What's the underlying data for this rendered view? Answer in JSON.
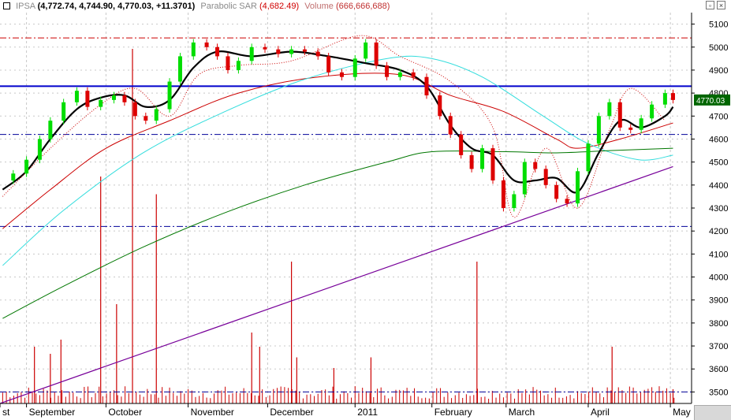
{
  "header": {
    "symbol": "IPSA",
    "ohlc": "(4,772.74, 4,744.90, 4,770.03, +11.3701)",
    "sar_label": "Parabolic SAR",
    "sar_value": "(4,682.49)",
    "volume_label": "Volume",
    "volume_value": "(666,666,688)"
  },
  "window_buttons": {
    "restore": "▫",
    "close": "×"
  },
  "colors": {
    "up_candle": "#00dd00",
    "down_candle": "#dd0000",
    "price_line": "#0000cc",
    "dashed_red": "#cc0000",
    "dashed_navy": "#000099",
    "sar_dots": "#cc0000",
    "ma_black": "#000000",
    "ma_red": "#cc0000",
    "ma_cyan": "#33dddd",
    "ma_green": "#007700",
    "trend_purple": "#770099",
    "volume": "#cc0000",
    "grid": "#c8c8c8"
  },
  "chart_data": {
    "type": "candlestick",
    "y_axis": {
      "range": [
        3450,
        5150
      ],
      "ticks": [
        3500,
        3600,
        3700,
        3800,
        3900,
        4000,
        4100,
        4200,
        4300,
        4400,
        4500,
        4600,
        4700,
        4800,
        4900,
        5000,
        5100
      ],
      "tick_labels": [
        "3500",
        "3600",
        "3700",
        "3800",
        "3900",
        "4000",
        "4100",
        "4200",
        "4300",
        "4400",
        "4500",
        "4600",
        "4700",
        "4800",
        "4900",
        "5000",
        "5100"
      ]
    },
    "x_axis": {
      "range": [
        "2010-08-22",
        "2011-05-10"
      ],
      "labels": [
        {
          "date": "2010-08-22",
          "text": "st"
        },
        {
          "date": "2010-09-01",
          "text": "September"
        },
        {
          "date": "2010-10-01",
          "text": "October"
        },
        {
          "date": "2010-11-01",
          "text": "November"
        },
        {
          "date": "2010-12-01",
          "text": "December"
        },
        {
          "date": "2011-01-03",
          "text": "2011"
        },
        {
          "date": "2011-02-01",
          "text": "February"
        },
        {
          "date": "2011-03-01",
          "text": "March"
        },
        {
          "date": "2011-04-01",
          "text": "April"
        },
        {
          "date": "2011-05-02",
          "text": "May"
        }
      ]
    },
    "last_price_label": "4770.03",
    "last_price": 4770.03,
    "horizontal_lines": [
      {
        "style": "solid",
        "color": "price_line",
        "value": 4830
      },
      {
        "style": "dashdot",
        "color": "dashed_red",
        "value": 5040
      },
      {
        "style": "dashdot",
        "color": "dashed_navy",
        "value": 4620
      },
      {
        "style": "dashdot",
        "color": "dashed_navy",
        "value": 4220
      },
      {
        "style": "dashdot",
        "color": "dashed_navy",
        "value": 3500
      }
    ],
    "trendline": {
      "start": [
        "2010-08-22",
        3450
      ],
      "end": [
        "2011-05-03",
        4480
      ]
    },
    "close_series": [
      {
        "date": "2010-08-23",
        "close": 4420
      },
      {
        "date": "2010-08-27",
        "close": 4450
      },
      {
        "date": "2010-09-01",
        "close": 4510
      },
      {
        "date": "2010-09-06",
        "close": 4600
      },
      {
        "date": "2010-09-10",
        "close": 4680
      },
      {
        "date": "2010-09-15",
        "close": 4760
      },
      {
        "date": "2010-09-20",
        "close": 4810
      },
      {
        "date": "2010-09-24",
        "close": 4740
      },
      {
        "date": "2010-09-29",
        "close": 4770
      },
      {
        "date": "2010-10-04",
        "close": 4790
      },
      {
        "date": "2010-10-08",
        "close": 4760
      },
      {
        "date": "2010-10-12",
        "close": 4700
      },
      {
        "date": "2010-10-16",
        "close": 4680
      },
      {
        "date": "2010-10-20",
        "close": 4730
      },
      {
        "date": "2010-10-25",
        "close": 4850
      },
      {
        "date": "2010-10-29",
        "close": 4960
      },
      {
        "date": "2010-11-03",
        "close": 5020
      },
      {
        "date": "2010-11-08",
        "close": 5000
      },
      {
        "date": "2010-11-12",
        "close": 4960
      },
      {
        "date": "2010-11-16",
        "close": 4900
      },
      {
        "date": "2010-11-20",
        "close": 4940
      },
      {
        "date": "2010-11-25",
        "close": 5000
      },
      {
        "date": "2010-11-30",
        "close": 4990
      },
      {
        "date": "2010-12-05",
        "close": 4970
      },
      {
        "date": "2010-12-10",
        "close": 4990
      },
      {
        "date": "2010-12-15",
        "close": 4980
      },
      {
        "date": "2010-12-20",
        "close": 4960
      },
      {
        "date": "2010-12-24",
        "close": 4890
      },
      {
        "date": "2010-12-29",
        "close": 4870
      },
      {
        "date": "2011-01-03",
        "close": 4950
      },
      {
        "date": "2011-01-07",
        "close": 5020
      },
      {
        "date": "2011-01-11",
        "close": 4920
      },
      {
        "date": "2011-01-15",
        "close": 4870
      },
      {
        "date": "2011-01-20",
        "close": 4890
      },
      {
        "date": "2011-01-25",
        "close": 4870
      },
      {
        "date": "2011-01-30",
        "close": 4790
      },
      {
        "date": "2011-02-04",
        "close": 4700
      },
      {
        "date": "2011-02-08",
        "close": 4620
      },
      {
        "date": "2011-02-12",
        "close": 4530
      },
      {
        "date": "2011-02-16",
        "close": 4470
      },
      {
        "date": "2011-02-20",
        "close": 4560
      },
      {
        "date": "2011-02-24",
        "close": 4420
      },
      {
        "date": "2011-02-28",
        "close": 4300
      },
      {
        "date": "2011-03-04",
        "close": 4360
      },
      {
        "date": "2011-03-08",
        "close": 4500
      },
      {
        "date": "2011-03-12",
        "close": 4470
      },
      {
        "date": "2011-03-16",
        "close": 4400
      },
      {
        "date": "2011-03-20",
        "close": 4340
      },
      {
        "date": "2011-03-24",
        "close": 4320
      },
      {
        "date": "2011-03-28",
        "close": 4460
      },
      {
        "date": "2011-04-01",
        "close": 4580
      },
      {
        "date": "2011-04-05",
        "close": 4700
      },
      {
        "date": "2011-04-09",
        "close": 4760
      },
      {
        "date": "2011-04-13",
        "close": 4650
      },
      {
        "date": "2011-04-17",
        "close": 4640
      },
      {
        "date": "2011-04-21",
        "close": 4690
      },
      {
        "date": "2011-04-25",
        "close": 4750
      },
      {
        "date": "2011-04-30",
        "close": 4800
      },
      {
        "date": "2011-05-03",
        "close": 4770
      }
    ],
    "moving_averages": [
      {
        "color": "ma_black",
        "points": [
          [
            "2010-08-23",
            4380
          ],
          [
            "2010-09-01",
            4460
          ],
          [
            "2010-09-10",
            4600
          ],
          [
            "2010-09-20",
            4730
          ],
          [
            "2010-09-29",
            4780
          ],
          [
            "2010-10-08",
            4790
          ],
          [
            "2010-10-16",
            4740
          ],
          [
            "2010-10-25",
            4770
          ],
          [
            "2010-11-03",
            4910
          ],
          [
            "2010-11-12",
            4980
          ],
          [
            "2010-11-25",
            4960
          ],
          [
            "2010-12-10",
            4980
          ],
          [
            "2010-12-24",
            4960
          ],
          [
            "2011-01-07",
            4930
          ],
          [
            "2011-01-20",
            4900
          ],
          [
            "2011-01-30",
            4830
          ],
          [
            "2011-02-08",
            4660
          ],
          [
            "2011-02-16",
            4560
          ],
          [
            "2011-02-24",
            4530
          ],
          [
            "2011-03-04",
            4420
          ],
          [
            "2011-03-12",
            4420
          ],
          [
            "2011-03-20",
            4430
          ],
          [
            "2011-03-28",
            4370
          ],
          [
            "2011-04-05",
            4540
          ],
          [
            "2011-04-13",
            4680
          ],
          [
            "2011-04-21",
            4650
          ],
          [
            "2011-04-30",
            4700
          ],
          [
            "2011-05-03",
            4740
          ]
        ]
      },
      {
        "color": "ma_red",
        "points": [
          [
            "2010-08-23",
            4210
          ],
          [
            "2010-09-10",
            4380
          ],
          [
            "2010-10-01",
            4560
          ],
          [
            "2010-10-25",
            4680
          ],
          [
            "2010-11-20",
            4800
          ],
          [
            "2010-12-20",
            4870
          ],
          [
            "2011-01-20",
            4880
          ],
          [
            "2011-02-08",
            4790
          ],
          [
            "2011-02-28",
            4720
          ],
          [
            "2011-03-20",
            4600
          ],
          [
            "2011-03-28",
            4560
          ],
          [
            "2011-04-13",
            4600
          ],
          [
            "2011-05-03",
            4670
          ]
        ]
      },
      {
        "color": "ma_cyan",
        "points": [
          [
            "2010-08-23",
            4050
          ],
          [
            "2010-09-15",
            4290
          ],
          [
            "2010-10-15",
            4540
          ],
          [
            "2010-11-15",
            4720
          ],
          [
            "2010-12-15",
            4860
          ],
          [
            "2011-01-15",
            4950
          ],
          [
            "2011-02-01",
            4950
          ],
          [
            "2011-02-20",
            4870
          ],
          [
            "2011-03-15",
            4700
          ],
          [
            "2011-04-01",
            4580
          ],
          [
            "2011-04-20",
            4510
          ],
          [
            "2011-05-03",
            4530
          ]
        ]
      },
      {
        "color": "ma_green",
        "points": [
          [
            "2010-08-23",
            3820
          ],
          [
            "2010-09-15",
            3960
          ],
          [
            "2010-10-15",
            4130
          ],
          [
            "2010-11-15",
            4280
          ],
          [
            "2010-12-15",
            4400
          ],
          [
            "2011-01-15",
            4500
          ],
          [
            "2011-02-01",
            4545
          ],
          [
            "2011-03-01",
            4545
          ],
          [
            "2011-03-20",
            4540
          ],
          [
            "2011-04-10",
            4550
          ],
          [
            "2011-05-03",
            4560
          ]
        ]
      }
    ],
    "volume": {
      "series": "Volume",
      "spikes": [
        {
          "date": "2010-09-04",
          "value": 0.16
        },
        {
          "date": "2010-09-10",
          "value": 0.14
        },
        {
          "date": "2010-09-14",
          "value": 0.18
        },
        {
          "date": "2010-09-29",
          "value": 0.64
        },
        {
          "date": "2010-10-05",
          "value": 0.28
        },
        {
          "date": "2010-10-11",
          "value": 1.0
        },
        {
          "date": "2010-10-20",
          "value": 0.59
        },
        {
          "date": "2010-11-25",
          "value": 0.2
        },
        {
          "date": "2010-11-28",
          "value": 0.16
        },
        {
          "date": "2010-12-10",
          "value": 0.4
        },
        {
          "date": "2010-12-12",
          "value": 0.13
        },
        {
          "date": "2010-12-26",
          "value": 0.1
        },
        {
          "date": "2011-01-09",
          "value": 0.13
        },
        {
          "date": "2011-02-18",
          "value": 0.4
        },
        {
          "date": "2011-04-10",
          "value": 0.16
        },
        {
          "date": "2011-05-03",
          "value": 0.04
        }
      ]
    },
    "sar": {
      "series": "Parabolic SAR",
      "value_label": "4,682.49",
      "points": [
        [
          "2010-08-23",
          4350
        ],
        [
          "2010-09-10",
          4560
        ],
        [
          "2010-09-29",
          4750
        ],
        [
          "2010-10-12",
          4820
        ],
        [
          "2010-10-25",
          4700
        ],
        [
          "2010-11-05",
          4880
        ],
        [
          "2010-11-20",
          4920
        ],
        [
          "2010-12-10",
          4940
        ],
        [
          "2011-01-05",
          5050
        ],
        [
          "2011-01-20",
          4960
        ],
        [
          "2011-02-08",
          4850
        ],
        [
          "2011-02-24",
          4650
        ],
        [
          "2011-03-04",
          4260
        ],
        [
          "2011-03-16",
          4560
        ],
        [
          "2011-03-28",
          4300
        ],
        [
          "2011-04-09",
          4640
        ],
        [
          "2011-04-17",
          4820
        ],
        [
          "2011-04-30",
          4680
        ]
      ]
    }
  }
}
